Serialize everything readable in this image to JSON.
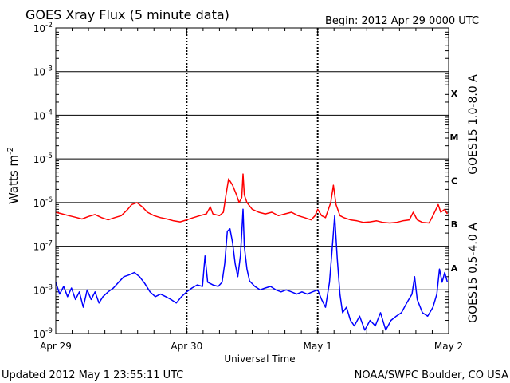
{
  "chart_data": {
    "type": "line",
    "title": "GOES Xray Flux (5 minute data)",
    "begin_label": "Begin:  2012 Apr 29 0000 UTC",
    "xlabel": "Universal Time",
    "ylabel_base": "Watts m",
    "ylabel_exp": "-2",
    "yscale": "log",
    "ylim": [
      1e-09,
      0.01
    ],
    "xlim_days": [
      0,
      3
    ],
    "x_ticks": [
      {
        "day": 0,
        "label": "Apr 29"
      },
      {
        "day": 1,
        "label": "Apr 30"
      },
      {
        "day": 2,
        "label": "May 1"
      },
      {
        "day": 3,
        "label": "May 2"
      }
    ],
    "y_ticks": [
      {
        "exp": -2,
        "label": "-2"
      },
      {
        "exp": -3,
        "label": "-3"
      },
      {
        "exp": -4,
        "label": "-4"
      },
      {
        "exp": -5,
        "label": "-5"
      },
      {
        "exp": -6,
        "label": "-6"
      },
      {
        "exp": -7,
        "label": "-7"
      },
      {
        "exp": -8,
        "label": "-8"
      },
      {
        "exp": -9,
        "label": "-9"
      }
    ],
    "flare_classes": [
      {
        "label": "X",
        "level": 0.0001
      },
      {
        "label": "M",
        "level": 1e-05
      },
      {
        "label": "C",
        "level": 1e-06
      },
      {
        "label": "B",
        "level": 1e-07
      },
      {
        "label": "A",
        "level": 1e-08
      }
    ],
    "series": [
      {
        "name": "GOES15 1.0-8.0 A",
        "color": "#ff0000",
        "points": [
          [
            0.0,
            6e-07
          ],
          [
            0.05,
            5.5e-07
          ],
          [
            0.1,
            5e-07
          ],
          [
            0.15,
            4.6e-07
          ],
          [
            0.2,
            4.2e-07
          ],
          [
            0.25,
            4.8e-07
          ],
          [
            0.3,
            5.3e-07
          ],
          [
            0.35,
            4.5e-07
          ],
          [
            0.4,
            4e-07
          ],
          [
            0.45,
            4.5e-07
          ],
          [
            0.5,
            5e-07
          ],
          [
            0.55,
            7e-07
          ],
          [
            0.58,
            9e-07
          ],
          [
            0.62,
            1e-06
          ],
          [
            0.66,
            8e-07
          ],
          [
            0.7,
            6e-07
          ],
          [
            0.75,
            5e-07
          ],
          [
            0.8,
            4.5e-07
          ],
          [
            0.85,
            4.2e-07
          ],
          [
            0.9,
            3.8e-07
          ],
          [
            0.95,
            3.6e-07
          ],
          [
            1.0,
            4e-07
          ],
          [
            1.05,
            4.5e-07
          ],
          [
            1.1,
            5e-07
          ],
          [
            1.15,
            5.5e-07
          ],
          [
            1.18,
            8e-07
          ],
          [
            1.2,
            5.5e-07
          ],
          [
            1.25,
            5e-07
          ],
          [
            1.28,
            6e-07
          ],
          [
            1.3,
            1.5e-06
          ],
          [
            1.32,
            3.5e-06
          ],
          [
            1.35,
            2.5e-06
          ],
          [
            1.38,
            1.5e-06
          ],
          [
            1.4,
            1e-06
          ],
          [
            1.42,
            1.3e-06
          ],
          [
            1.43,
            4.5e-06
          ],
          [
            1.44,
            1.5e-06
          ],
          [
            1.46,
            1e-06
          ],
          [
            1.5,
            7e-07
          ],
          [
            1.55,
            6e-07
          ],
          [
            1.6,
            5.5e-07
          ],
          [
            1.65,
            6e-07
          ],
          [
            1.7,
            5e-07
          ],
          [
            1.75,
            5.5e-07
          ],
          [
            1.8,
            6e-07
          ],
          [
            1.85,
            5e-07
          ],
          [
            1.9,
            4.5e-07
          ],
          [
            1.95,
            4e-07
          ],
          [
            1.98,
            5e-07
          ],
          [
            2.0,
            7e-07
          ],
          [
            2.03,
            5e-07
          ],
          [
            2.06,
            4.5e-07
          ],
          [
            2.1,
            1e-06
          ],
          [
            2.12,
            2.5e-06
          ],
          [
            2.14,
            9e-07
          ],
          [
            2.17,
            5e-07
          ],
          [
            2.2,
            4.5e-07
          ],
          [
            2.25,
            4e-07
          ],
          [
            2.3,
            3.8e-07
          ],
          [
            2.35,
            3.5e-07
          ],
          [
            2.4,
            3.6e-07
          ],
          [
            2.45,
            3.8e-07
          ],
          [
            2.5,
            3.5e-07
          ],
          [
            2.55,
            3.4e-07
          ],
          [
            2.6,
            3.5e-07
          ],
          [
            2.65,
            3.8e-07
          ],
          [
            2.7,
            4e-07
          ],
          [
            2.73,
            6e-07
          ],
          [
            2.76,
            4e-07
          ],
          [
            2.8,
            3.5e-07
          ],
          [
            2.85,
            3.4e-07
          ],
          [
            2.88,
            5e-07
          ],
          [
            2.92,
            9e-07
          ],
          [
            2.94,
            6e-07
          ],
          [
            2.97,
            7e-07
          ],
          [
            2.99,
            5.5e-07
          ]
        ]
      },
      {
        "name": "GOES15 0.5-4.0 A",
        "color": "#0000ff",
        "points": [
          [
            0.0,
            1.5e-08
          ],
          [
            0.03,
            8e-09
          ],
          [
            0.06,
            1.2e-08
          ],
          [
            0.09,
            7e-09
          ],
          [
            0.12,
            1.1e-08
          ],
          [
            0.15,
            6e-09
          ],
          [
            0.18,
            9e-09
          ],
          [
            0.21,
            4e-09
          ],
          [
            0.24,
            1e-08
          ],
          [
            0.27,
            6e-09
          ],
          [
            0.3,
            9e-09
          ],
          [
            0.33,
            5e-09
          ],
          [
            0.36,
            7e-09
          ],
          [
            0.4,
            9e-09
          ],
          [
            0.44,
            1.1e-08
          ],
          [
            0.48,
            1.5e-08
          ],
          [
            0.52,
            2e-08
          ],
          [
            0.56,
            2.2e-08
          ],
          [
            0.6,
            2.5e-08
          ],
          [
            0.64,
            2e-08
          ],
          [
            0.68,
            1.4e-08
          ],
          [
            0.72,
            9e-09
          ],
          [
            0.76,
            7e-09
          ],
          [
            0.8,
            8e-09
          ],
          [
            0.84,
            7e-09
          ],
          [
            0.88,
            6e-09
          ],
          [
            0.92,
            5e-09
          ],
          [
            0.96,
            7e-09
          ],
          [
            1.0,
            9e-09
          ],
          [
            1.04,
            1.1e-08
          ],
          [
            1.08,
            1.3e-08
          ],
          [
            1.12,
            1.2e-08
          ],
          [
            1.14,
            6e-08
          ],
          [
            1.16,
            1.5e-08
          ],
          [
            1.2,
            1.3e-08
          ],
          [
            1.24,
            1.2e-08
          ],
          [
            1.27,
            1.5e-08
          ],
          [
            1.29,
            4e-08
          ],
          [
            1.31,
            2.2e-07
          ],
          [
            1.33,
            2.5e-07
          ],
          [
            1.35,
            1.2e-07
          ],
          [
            1.37,
            4e-08
          ],
          [
            1.39,
            2e-08
          ],
          [
            1.41,
            6e-08
          ],
          [
            1.42,
            2e-07
          ],
          [
            1.43,
            7e-07
          ],
          [
            1.44,
            1e-07
          ],
          [
            1.46,
            3e-08
          ],
          [
            1.48,
            1.6e-08
          ],
          [
            1.52,
            1.2e-08
          ],
          [
            1.56,
            1e-08
          ],
          [
            1.6,
            1.1e-08
          ],
          [
            1.64,
            1.2e-08
          ],
          [
            1.68,
            1e-08
          ],
          [
            1.72,
            9e-09
          ],
          [
            1.76,
            1e-08
          ],
          [
            1.8,
            9e-09
          ],
          [
            1.84,
            8e-09
          ],
          [
            1.88,
            9e-09
          ],
          [
            1.92,
            8e-09
          ],
          [
            1.96,
            9e-09
          ],
          [
            2.0,
            1e-08
          ],
          [
            2.03,
            6e-09
          ],
          [
            2.06,
            4e-09
          ],
          [
            2.09,
            1.5e-08
          ],
          [
            2.11,
            8e-08
          ],
          [
            2.13,
            5e-07
          ],
          [
            2.15,
            5e-08
          ],
          [
            2.17,
            8e-09
          ],
          [
            2.19,
            3e-09
          ],
          [
            2.22,
            4e-09
          ],
          [
            2.25,
            2e-09
          ],
          [
            2.28,
            1.5e-09
          ],
          [
            2.32,
            2.5e-09
          ],
          [
            2.36,
            1.2e-09
          ],
          [
            2.4,
            2e-09
          ],
          [
            2.44,
            1.5e-09
          ],
          [
            2.48,
            3e-09
          ],
          [
            2.52,
            1.2e-09
          ],
          [
            2.56,
            2e-09
          ],
          [
            2.6,
            2.5e-09
          ],
          [
            2.64,
            3e-09
          ],
          [
            2.68,
            5e-09
          ],
          [
            2.72,
            8e-09
          ],
          [
            2.74,
            2e-08
          ],
          [
            2.76,
            6e-09
          ],
          [
            2.8,
            3e-09
          ],
          [
            2.84,
            2.5e-09
          ],
          [
            2.88,
            4e-09
          ],
          [
            2.91,
            8e-09
          ],
          [
            2.93,
            3e-08
          ],
          [
            2.95,
            1.5e-08
          ],
          [
            2.97,
            2.5e-08
          ],
          [
            2.99,
            1.5e-08
          ]
        ]
      }
    ]
  },
  "footer": {
    "updated": "Updated 2012 May  1 23:55:11 UTC",
    "credit": "NOAA/SWPC Boulder, CO USA"
  }
}
